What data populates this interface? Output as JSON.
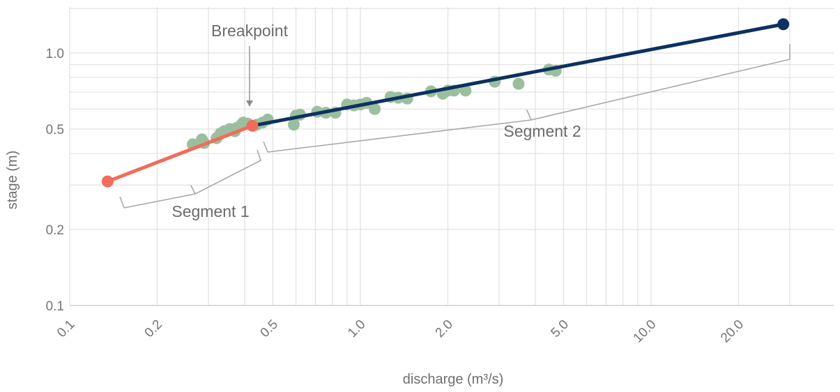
{
  "chart_data": {
    "type": "scatter",
    "xlabel": "discharge (m³/s)",
    "ylabel": "stage (m)",
    "x_scale": "log",
    "y_scale": "log",
    "xlim": [
      0.1,
      35
    ],
    "ylim": [
      0.1,
      1.6
    ],
    "grid": true,
    "x_ticks": [
      0.1,
      0.2,
      0.5,
      1.0,
      2.0,
      5.0,
      10.0,
      20.0
    ],
    "x_tick_labels": [
      "0.1",
      "0.2",
      "0.5",
      "1.0",
      "2.0",
      "5.0",
      "10.0",
      "20.0"
    ],
    "y_ticks": [
      0.1,
      0.2,
      0.5,
      1.0
    ],
    "y_tick_labels": [
      "0.1",
      "0.2",
      "0.5",
      "1.0"
    ],
    "colors": {
      "observations": "#9bbf9e",
      "segment1": "#f26b5b",
      "segment2": "#0d3160",
      "grid": "#e0e0e0",
      "annotation": "#a8a8a8"
    },
    "observations": [
      {
        "x": 0.265,
        "y": 0.435
      },
      {
        "x": 0.29,
        "y": 0.44
      },
      {
        "x": 0.285,
        "y": 0.455
      },
      {
        "x": 0.32,
        "y": 0.46
      },
      {
        "x": 0.33,
        "y": 0.48
      },
      {
        "x": 0.34,
        "y": 0.49
      },
      {
        "x": 0.355,
        "y": 0.5
      },
      {
        "x": 0.37,
        "y": 0.49
      },
      {
        "x": 0.375,
        "y": 0.505
      },
      {
        "x": 0.39,
        "y": 0.52
      },
      {
        "x": 0.395,
        "y": 0.53
      },
      {
        "x": 0.41,
        "y": 0.525
      },
      {
        "x": 0.44,
        "y": 0.52
      },
      {
        "x": 0.46,
        "y": 0.53
      },
      {
        "x": 0.48,
        "y": 0.545
      },
      {
        "x": 0.59,
        "y": 0.52
      },
      {
        "x": 0.6,
        "y": 0.565
      },
      {
        "x": 0.62,
        "y": 0.57
      },
      {
        "x": 0.71,
        "y": 0.585
      },
      {
        "x": 0.76,
        "y": 0.58
      },
      {
        "x": 0.82,
        "y": 0.58
      },
      {
        "x": 0.9,
        "y": 0.625
      },
      {
        "x": 0.95,
        "y": 0.62
      },
      {
        "x": 1.0,
        "y": 0.625
      },
      {
        "x": 1.05,
        "y": 0.635
      },
      {
        "x": 1.12,
        "y": 0.6
      },
      {
        "x": 1.27,
        "y": 0.67
      },
      {
        "x": 1.35,
        "y": 0.665
      },
      {
        "x": 1.45,
        "y": 0.66
      },
      {
        "x": 1.75,
        "y": 0.705
      },
      {
        "x": 1.92,
        "y": 0.69
      },
      {
        "x": 2.0,
        "y": 0.71
      },
      {
        "x": 2.1,
        "y": 0.71
      },
      {
        "x": 2.3,
        "y": 0.71
      },
      {
        "x": 2.9,
        "y": 0.77
      },
      {
        "x": 3.5,
        "y": 0.755
      },
      {
        "x": 4.45,
        "y": 0.86
      },
      {
        "x": 4.7,
        "y": 0.85
      }
    ],
    "segments": [
      {
        "points": [
          {
            "x": 0.135,
            "y": 0.31
          },
          {
            "x": 0.425,
            "y": 0.515
          }
        ]
      },
      {
        "points": [
          {
            "x": 0.425,
            "y": 0.515
          },
          {
            "x": 28.5,
            "y": 1.3
          }
        ]
      }
    ],
    "annotations": {
      "breakpoint": "Breakpoint",
      "segment1": "Segment 1",
      "segment2": "Segment 2"
    }
  }
}
